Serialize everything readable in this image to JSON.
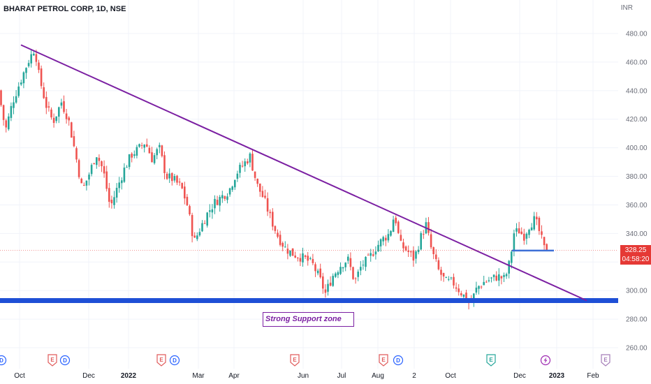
{
  "header": {
    "title": "BHARAT PETROL CORP, 1D, NSE",
    "currency": "INR"
  },
  "price_tag": {
    "price": "328.25",
    "countdown": "04:58:20"
  },
  "annotation": {
    "text": "Strong Support zone"
  },
  "colors": {
    "up": "#26a69a",
    "down": "#ef5350",
    "trendline": "#7b1fa2",
    "support": "#1e4fd6",
    "price_line": "#e53935",
    "breakout_line": "#3d6fd6"
  },
  "chart_data": {
    "type": "candlestick",
    "ylim": [
      255,
      490
    ],
    "y_ticks": [
      260,
      280,
      300,
      320,
      340,
      360,
      380,
      400,
      420,
      440,
      460,
      480
    ],
    "x_tick_labels": [
      {
        "label": "Oct",
        "x": 28
      },
      {
        "label": "Dec",
        "x": 127
      },
      {
        "label": "2022",
        "x": 184
      },
      {
        "label": "Mar",
        "x": 284
      },
      {
        "label": "Apr",
        "x": 335
      },
      {
        "label": "Jun",
        "x": 434
      },
      {
        "label": "Jul",
        "x": 489
      },
      {
        "label": "Aug",
        "x": 541
      },
      {
        "label": "2",
        "x": 593
      },
      {
        "label": "Oct",
        "x": 645
      },
      {
        "label": "Dec",
        "x": 744
      },
      {
        "label": "2023",
        "x": 797
      },
      {
        "label": "Feb",
        "x": 849
      }
    ],
    "event_markers": [
      {
        "type": "D",
        "x": 2
      },
      {
        "type": "E",
        "x": 75
      },
      {
        "type": "D",
        "x": 93
      },
      {
        "type": "E",
        "x": 231
      },
      {
        "type": "D",
        "x": 250
      },
      {
        "type": "E",
        "x": 422
      },
      {
        "type": "E",
        "x": 549
      },
      {
        "type": "D",
        "x": 570
      },
      {
        "type": "E",
        "x": 703
      },
      {
        "type": "S",
        "x": 781
      },
      {
        "type": "E",
        "x": 867
      }
    ],
    "trendline": {
      "from": {
        "x": 30,
        "y": 472
      },
      "to": {
        "x": 840,
        "y": 293
      }
    },
    "support_level": 293,
    "current_price": 328.25,
    "breakout_level": 328,
    "breakout_range": [
      733,
      793
    ],
    "price_path": [
      [
        0,
        440
      ],
      [
        10,
        412
      ],
      [
        20,
        432
      ],
      [
        30,
        445
      ],
      [
        42,
        460
      ],
      [
        52,
        470
      ],
      [
        58,
        450
      ],
      [
        68,
        430
      ],
      [
        78,
        418
      ],
      [
        90,
        432
      ],
      [
        100,
        420
      ],
      [
        110,
        396
      ],
      [
        120,
        370
      ],
      [
        130,
        382
      ],
      [
        140,
        396
      ],
      [
        150,
        384
      ],
      [
        160,
        358
      ],
      [
        170,
        372
      ],
      [
        180,
        385
      ],
      [
        190,
        395
      ],
      [
        200,
        399
      ],
      [
        210,
        404
      ],
      [
        220,
        392
      ],
      [
        230,
        400
      ],
      [
        240,
        380
      ],
      [
        250,
        378
      ],
      [
        262,
        372
      ],
      [
        270,
        360
      ],
      [
        280,
        334
      ],
      [
        290,
        345
      ],
      [
        300,
        355
      ],
      [
        310,
        362
      ],
      [
        320,
        366
      ],
      [
        330,
        370
      ],
      [
        340,
        382
      ],
      [
        350,
        388
      ],
      [
        360,
        394
      ],
      [
        370,
        374
      ],
      [
        380,
        364
      ],
      [
        390,
        350
      ],
      [
        400,
        338
      ],
      [
        410,
        330
      ],
      [
        420,
        326
      ],
      [
        430,
        324
      ],
      [
        440,
        322
      ],
      [
        450,
        318
      ],
      [
        460,
        308
      ],
      [
        468,
        298
      ],
      [
        478,
        310
      ],
      [
        490,
        318
      ],
      [
        500,
        322
      ],
      [
        510,
        306
      ],
      [
        520,
        318
      ],
      [
        530,
        322
      ],
      [
        540,
        330
      ],
      [
        550,
        336
      ],
      [
        560,
        340
      ],
      [
        567,
        354
      ],
      [
        575,
        332
      ],
      [
        585,
        328
      ],
      [
        595,
        322
      ],
      [
        605,
        338
      ],
      [
        612,
        346
      ],
      [
        620,
        328
      ],
      [
        630,
        314
      ],
      [
        640,
        306
      ],
      [
        650,
        306
      ],
      [
        660,
        300
      ],
      [
        670,
        294
      ],
      [
        675,
        290
      ],
      [
        685,
        302
      ],
      [
        695,
        306
      ],
      [
        705,
        308
      ],
      [
        715,
        310
      ],
      [
        725,
        308
      ],
      [
        733,
        322
      ],
      [
        737,
        340
      ],
      [
        745,
        342
      ],
      [
        752,
        338
      ],
      [
        760,
        346
      ],
      [
        768,
        350
      ],
      [
        775,
        340
      ],
      [
        782,
        328
      ]
    ]
  }
}
